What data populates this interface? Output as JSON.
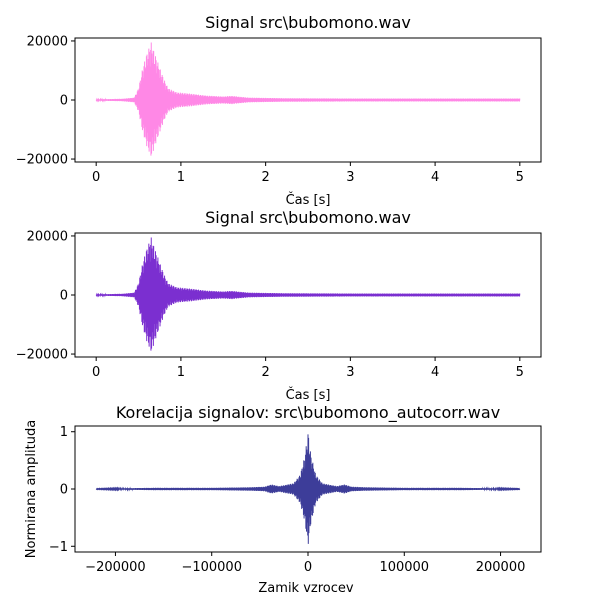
{
  "chart_data": [
    {
      "type": "line",
      "title": "Signal src\\bubomono.wav",
      "xlabel": "Čas [s]",
      "ylabel": "",
      "xlim": [
        -0.25,
        5.25
      ],
      "ylim": [
        -21000,
        21000
      ],
      "xticks": [
        0,
        1,
        2,
        3,
        4,
        5
      ],
      "xtick_labels": [
        "0",
        "1",
        "2",
        "3",
        "4",
        "5"
      ],
      "yticks": [
        -20000,
        0,
        20000
      ],
      "ytick_labels": [
        "−20000",
        "0",
        "20000"
      ],
      "grid": false,
      "color": "#ff88e6",
      "series": [
        {
          "x": [
            0.0,
            0.3,
            0.45,
            0.5,
            0.55,
            0.6,
            0.65,
            0.7,
            0.75,
            0.8,
            0.85,
            0.95,
            1.1,
            1.3,
            1.5,
            1.6,
            1.8,
            2.2,
            3.0,
            4.0,
            5.0
          ],
          "y_envelope": [
            200,
            400,
            800,
            4000,
            11000,
            16000,
            19500,
            15000,
            11000,
            7000,
            4000,
            2600,
            2200,
            1500,
            1200,
            1400,
            800,
            600,
            500,
            500,
            500
          ]
        }
      ]
    },
    {
      "type": "line",
      "title": "Signal src\\bubomono.wav",
      "xlabel": "Čas [s]",
      "ylabel": "",
      "xlim": [
        -0.25,
        5.25
      ],
      "ylim": [
        -21000,
        21000
      ],
      "xticks": [
        0,
        1,
        2,
        3,
        4,
        5
      ],
      "xtick_labels": [
        "0",
        "1",
        "2",
        "3",
        "4",
        "5"
      ],
      "yticks": [
        -20000,
        0,
        20000
      ],
      "ytick_labels": [
        "−20000",
        "0",
        "20000"
      ],
      "grid": false,
      "color": "#7b2fd0",
      "series": [
        {
          "x": [
            0.0,
            0.3,
            0.45,
            0.5,
            0.55,
            0.6,
            0.65,
            0.7,
            0.75,
            0.8,
            0.85,
            0.95,
            1.1,
            1.3,
            1.5,
            1.6,
            1.8,
            2.2,
            3.0,
            4.0,
            5.0
          ],
          "y_envelope": [
            200,
            400,
            800,
            4000,
            11000,
            16000,
            19500,
            15000,
            11000,
            7000,
            4000,
            2600,
            2200,
            1500,
            1200,
            1400,
            800,
            600,
            500,
            500,
            500
          ]
        }
      ]
    },
    {
      "type": "line",
      "title": "Korelacija signalov: src\\bubomono_autocorr.wav",
      "xlabel": "Zamik vzrocev",
      "ylabel": "Normirana amplituda",
      "xlim": [
        -242000,
        242000
      ],
      "ylim": [
        -1.1,
        1.1
      ],
      "xticks": [
        -200000,
        -100000,
        0,
        100000,
        200000
      ],
      "xtick_labels": [
        "−200000",
        "−100000",
        "0",
        "100000",
        "200000"
      ],
      "yticks": [
        -1,
        0,
        1
      ],
      "ytick_labels": [
        "−1",
        "0",
        "1"
      ],
      "grid": false,
      "color": "#3d3d99",
      "series": [
        {
          "x": [
            -220000,
            -160000,
            -100000,
            -60000,
            -45000,
            -38000,
            -30000,
            -15000,
            -8000,
            -3000,
            0,
            3000,
            8000,
            15000,
            30000,
            38000,
            45000,
            60000,
            100000,
            160000,
            220000
          ],
          "y_envelope": [
            0.005,
            0.02,
            0.02,
            0.03,
            0.04,
            0.08,
            0.05,
            0.1,
            0.25,
            0.6,
            1.0,
            0.6,
            0.25,
            0.1,
            0.05,
            0.08,
            0.04,
            0.03,
            0.02,
            0.02,
            0.005
          ]
        }
      ]
    }
  ]
}
